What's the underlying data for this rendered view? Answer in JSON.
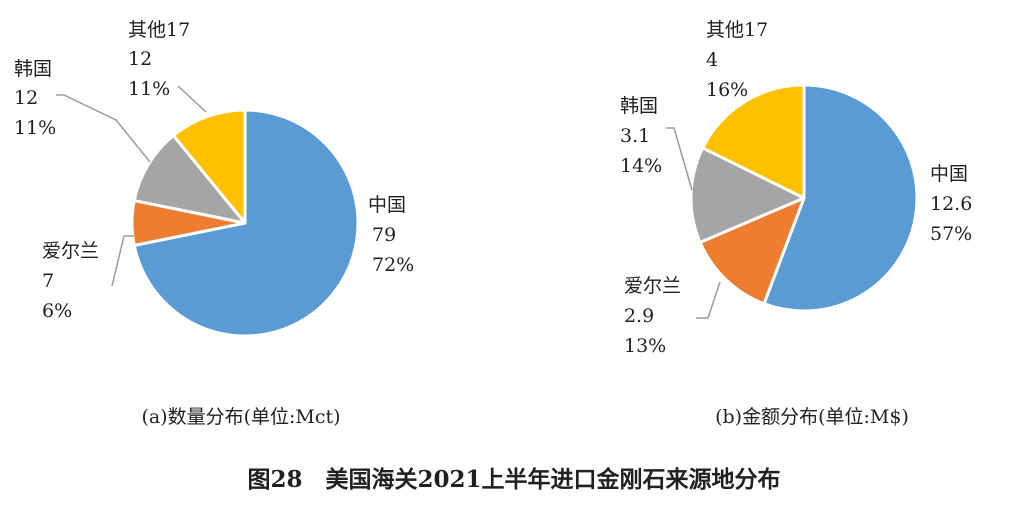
{
  "figure_title": "图28　美国海关2021上半年进口金刚石来源地分布",
  "chart_data": [
    {
      "type": "pie",
      "caption": "(a)数量分布(单位:Mct)",
      "unit": "Mct",
      "slices": [
        {
          "label": "中国",
          "value_text": "79",
          "percent_text": "72%",
          "value": 79,
          "percent": 72,
          "color": "#5b9bd5"
        },
        {
          "label": "爱尔兰",
          "value_text": "7",
          "percent_text": "6%",
          "value": 7,
          "percent": 6,
          "color": "#ed7d31"
        },
        {
          "label": "韩国",
          "value_text": "12",
          "percent_text": "11%",
          "value": 12,
          "percent": 11,
          "color": "#a5a5a5"
        },
        {
          "label": "其他17",
          "value_text": "12",
          "percent_text": "11%",
          "value": 12,
          "percent": 11,
          "color": "#ffc000"
        }
      ]
    },
    {
      "type": "pie",
      "caption": "(b)金额分布(单位:M$)",
      "unit": "M$",
      "slices": [
        {
          "label": "中国",
          "value_text": "12.6",
          "percent_text": "57%",
          "value": 12.6,
          "percent": 57,
          "color": "#5b9bd5"
        },
        {
          "label": "爱尔兰",
          "value_text": "2.9",
          "percent_text": "13%",
          "value": 2.9,
          "percent": 13,
          "color": "#ed7d31"
        },
        {
          "label": "韩国",
          "value_text": "3.1",
          "percent_text": "14%",
          "value": 3.1,
          "percent": 14,
          "color": "#a5a5a5"
        },
        {
          "label": "其他17",
          "value_text": "4",
          "percent_text": "16%",
          "value": 4,
          "percent": 16,
          "color": "#ffc000"
        }
      ]
    }
  ]
}
